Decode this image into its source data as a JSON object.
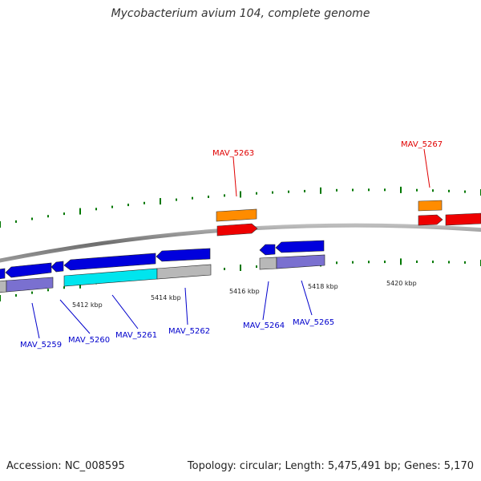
{
  "title": "Mycobacterium avium 104, complete genome",
  "footer": {
    "accession": "Accession: NC_008595",
    "stats": "Topology: circular; Length: 5,475,491 bp; Genes: 5,170"
  },
  "scale_labels": [
    "5412 kbp",
    "5414 kbp",
    "5416 kbp",
    "5418 kbp",
    "5420 kbp"
  ],
  "gene_labels": {
    "forward": [
      "MAV_5263",
      "MAV_5267"
    ],
    "reverse": [
      "MAV_5259",
      "MAV_5260",
      "MAV_5261",
      "MAV_5262",
      "MAV_5264",
      "MAV_5265"
    ]
  },
  "colors": {
    "forward_label": "#e00000",
    "reverse_label": "#0000cc",
    "backbone": "#808080",
    "tick": "#007700",
    "cds_blue": "#0000dd",
    "cds_red": "#ee0000",
    "cds_orange": "#ff8800",
    "cds_cyan": "#00e5ee",
    "cds_gray": "#b8b8b8",
    "cds_slate": "#7a70d0"
  }
}
